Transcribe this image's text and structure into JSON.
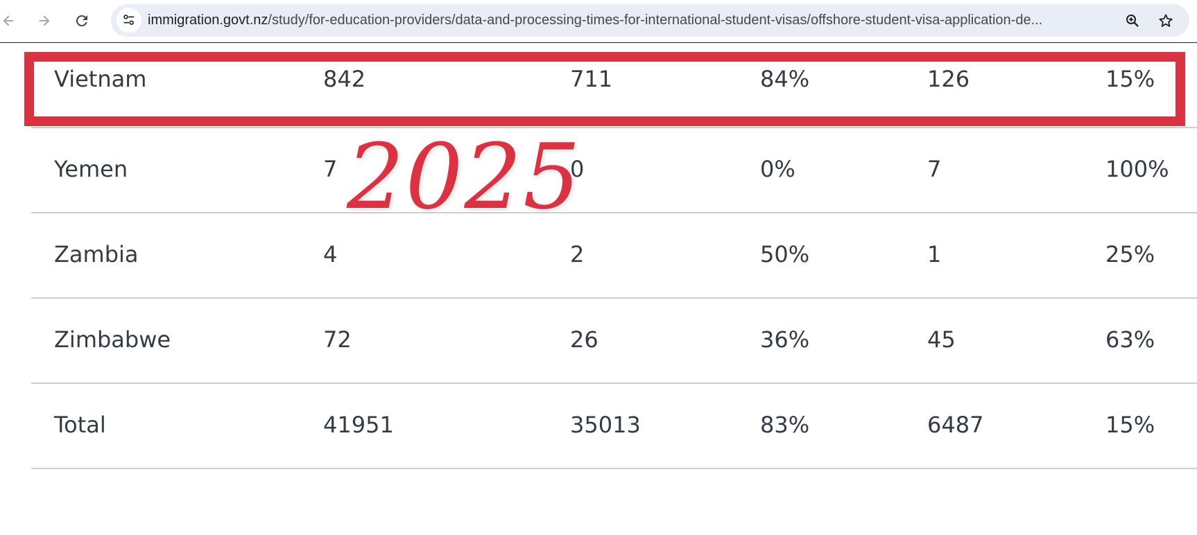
{
  "browser": {
    "url_host": "immigration.govt.nz",
    "url_path": "/study/for-education-providers/data-and-processing-times-for-international-student-visas/offshore-student-visa-application-de..."
  },
  "table": {
    "rows": [
      {
        "country": "Vietnam",
        "c1": "842",
        "c2": "711",
        "c3": "84%",
        "c4": "126",
        "c5": "15%"
      },
      {
        "country": "Yemen",
        "c1": "7",
        "c2": "0",
        "c3": "0%",
        "c4": "7",
        "c5": "100%"
      },
      {
        "country": "Zambia",
        "c1": "4",
        "c2": "2",
        "c3": "50%",
        "c4": "1",
        "c5": "25%"
      },
      {
        "country": "Zimbabwe",
        "c1": "72",
        "c2": "26",
        "c3": "36%",
        "c4": "45",
        "c5": "63%"
      },
      {
        "country": "Total",
        "c1": "41951",
        "c2": "35013",
        "c3": "83%",
        "c4": "6487",
        "c5": "15%"
      }
    ]
  },
  "overlay": {
    "year": "2025",
    "highlight_color": "#d93243"
  },
  "icons": {
    "back": "arrow-left-icon",
    "forward": "arrow-right-icon",
    "reload": "reload-icon",
    "site_info": "tune-icon",
    "zoom": "zoom-in-icon",
    "bookmark": "star-icon"
  }
}
